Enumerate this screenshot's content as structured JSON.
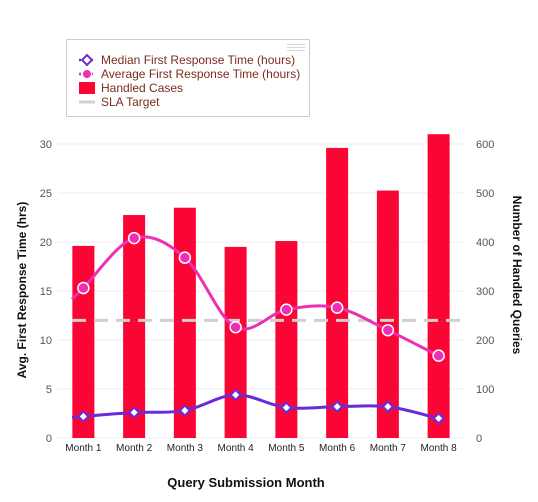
{
  "chart_data": {
    "type": "bar",
    "categories": [
      "Month 1",
      "Month 2",
      "Month 3",
      "Month 4",
      "Month 5",
      "Month 6",
      "Month 7",
      "Month 8"
    ],
    "xlabel": "Query Submission Month",
    "ylabel_left": "Avg. First Response Time (hrs)",
    "ylabel_right": "Number of Handled Queries",
    "ylim_left": [
      0,
      30
    ],
    "ylim_right": [
      0,
      600
    ],
    "yticks_left": [
      "0",
      "5",
      "10",
      "15",
      "20",
      "25",
      "30"
    ],
    "yticks_right": [
      "0",
      "100",
      "200",
      "300",
      "400",
      "500",
      "600"
    ],
    "series": [
      {
        "name": "Median First Response Time (hours)",
        "type": "line",
        "axis": "left",
        "color": "#6a2bd9",
        "values": [
          2.2,
          2.6,
          2.8,
          4.4,
          3.1,
          3.2,
          3.2,
          2.0
        ]
      },
      {
        "name": "Average First Response Time (hours)",
        "type": "line",
        "axis": "left",
        "color": "#ee2fb4",
        "values": [
          15.3,
          20.4,
          18.4,
          11.3,
          13.1,
          13.3,
          11.0,
          8.4
        ]
      },
      {
        "name": "Handled Cases",
        "type": "bar",
        "axis": "right",
        "color": "#fb0535",
        "values": [
          392,
          455,
          470,
          390,
          402,
          592,
          505,
          620
        ]
      },
      {
        "name": "SLA Target",
        "type": "line",
        "axis": "left",
        "color": "#d0d0d0",
        "dash": "dashed",
        "values": [
          12,
          12,
          12,
          12,
          12,
          12,
          12,
          12
        ]
      }
    ],
    "grid": true,
    "legend_position": "top-left"
  }
}
